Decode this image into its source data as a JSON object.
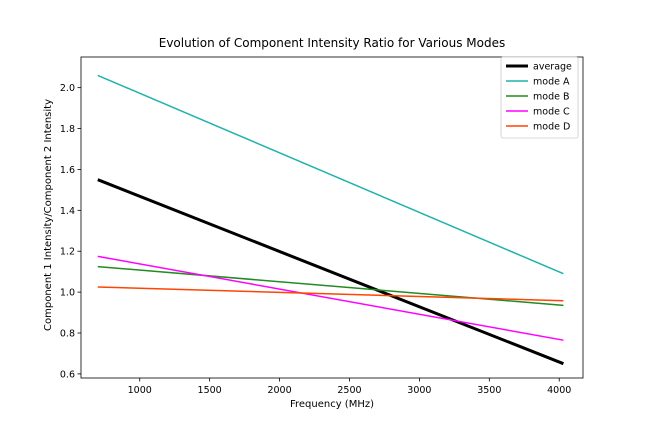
{
  "chart_data": {
    "type": "line",
    "title": "Evolution of Component Intensity Ratio for Various Modes",
    "xlabel": "Frequency (MHz)",
    "ylabel": "Component 1 Intensity/Component 2 Intensity",
    "xlim": [
      580,
      4170
    ],
    "ylim": [
      0.58,
      2.15
    ],
    "xticks": [
      1000,
      1500,
      2000,
      2500,
      3000,
      3500,
      4000
    ],
    "yticks": [
      0.6,
      0.8,
      1.0,
      1.2,
      1.4,
      1.6,
      1.8,
      2.0
    ],
    "x": [
      700,
      4030
    ],
    "grid": false,
    "legend_position": "top-right",
    "series": [
      {
        "name": "average",
        "values": [
          1.55,
          0.65
        ],
        "color": "#000000",
        "linewidth": "thick"
      },
      {
        "name": "mode A",
        "values": [
          2.06,
          1.09
        ],
        "color": "#20b2aa",
        "linewidth": "normal"
      },
      {
        "name": "mode B",
        "values": [
          1.125,
          0.935
        ],
        "color": "#228b22",
        "linewidth": "normal"
      },
      {
        "name": "mode C",
        "values": [
          1.175,
          0.765
        ],
        "color": "#ff00ff",
        "linewidth": "normal"
      },
      {
        "name": "mode D",
        "values": [
          1.025,
          0.958
        ],
        "color": "#ff4500",
        "linewidth": "normal"
      }
    ]
  }
}
